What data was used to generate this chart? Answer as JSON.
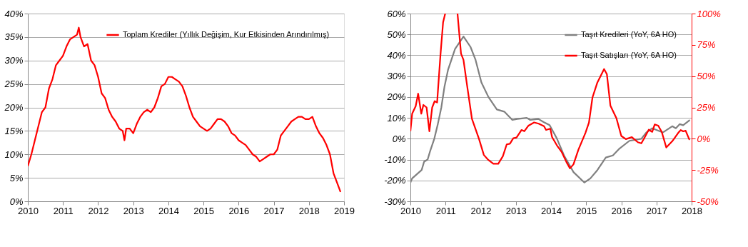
{
  "chart_data": [
    {
      "type": "line",
      "xlim": [
        2010,
        2019
      ],
      "ylim": [
        0,
        40
      ],
      "xticks": [
        2010,
        2011,
        2012,
        2013,
        2014,
        2015,
        2016,
        2017,
        2018,
        2019
      ],
      "yticks": [
        {
          "value": 0,
          "label": "0%"
        },
        {
          "value": 5,
          "label": "5%"
        },
        {
          "value": 10,
          "label": "10%"
        },
        {
          "value": 15,
          "label": "15%"
        },
        {
          "value": 20,
          "label": "20%"
        },
        {
          "value": 25,
          "label": "25%"
        },
        {
          "value": 30,
          "label": "30%"
        },
        {
          "value": 35,
          "label": "35%"
        },
        {
          "value": 40,
          "label": "40%"
        }
      ],
      "grid": "y",
      "legend": "top right",
      "marker": "none",
      "line_style": "solid",
      "series": [
        {
          "name": "Toplam Krediler (Yıllık Değişim, Kur Etkisinden Arındırılmış)",
          "color": "#ff0000",
          "x": [
            2010.0,
            2010.1,
            2010.2,
            2010.3,
            2010.4,
            2010.5,
            2010.6,
            2010.7,
            2010.8,
            2010.9,
            2011.0,
            2011.1,
            2011.2,
            2011.3,
            2011.4,
            2011.45,
            2011.5,
            2011.6,
            2011.7,
            2011.8,
            2011.9,
            2012.0,
            2012.1,
            2012.2,
            2012.3,
            2012.4,
            2012.5,
            2012.6,
            2012.7,
            2012.75,
            2012.8,
            2012.9,
            2013.0,
            2013.1,
            2013.2,
            2013.3,
            2013.4,
            2013.5,
            2013.6,
            2013.7,
            2013.8,
            2013.9,
            2014.0,
            2014.1,
            2014.2,
            2014.3,
            2014.4,
            2014.5,
            2014.6,
            2014.7,
            2014.8,
            2014.9,
            2015.0,
            2015.1,
            2015.2,
            2015.3,
            2015.4,
            2015.5,
            2015.6,
            2015.7,
            2015.8,
            2015.9,
            2016.0,
            2016.1,
            2016.2,
            2016.3,
            2016.4,
            2016.5,
            2016.6,
            2016.7,
            2016.8,
            2016.9,
            2017.0,
            2017.1,
            2017.2,
            2017.3,
            2017.4,
            2017.5,
            2017.6,
            2017.7,
            2017.8,
            2017.9,
            2018.0,
            2018.1,
            2018.2,
            2018.3,
            2018.4,
            2018.5,
            2018.6,
            2018.7,
            2018.8,
            2018.9
          ],
          "values": [
            7.5,
            10,
            13,
            16,
            19,
            20,
            24,
            26,
            29,
            30,
            31,
            33,
            34.5,
            35,
            35.5,
            37,
            35,
            33,
            33.5,
            30,
            29,
            26.5,
            23,
            22,
            19.5,
            18,
            17,
            15.5,
            15,
            13,
            15.5,
            15.5,
            14.5,
            16.5,
            18,
            19,
            19.5,
            19,
            20,
            22,
            24.5,
            25,
            26.5,
            26.5,
            26,
            25.5,
            24.5,
            22.5,
            20,
            18,
            17,
            16,
            15.5,
            15,
            15.5,
            16.5,
            17.5,
            17.5,
            17,
            16,
            14.5,
            14,
            13,
            12.5,
            12,
            11,
            10,
            9.5,
            8.5,
            9,
            9.5,
            10,
            10,
            11,
            14,
            15,
            16,
            17,
            17.5,
            18,
            18,
            17.5,
            17.5,
            18,
            16,
            14.5,
            13.5,
            12,
            10,
            6,
            4,
            2
          ]
        }
      ]
    },
    {
      "type": "line",
      "xlim": [
        2010,
        2018
      ],
      "ylim": [
        -30,
        60
      ],
      "y2lim": [
        -50,
        100
      ],
      "xticks": [
        2010,
        2011,
        2012,
        2013,
        2014,
        2015,
        2016,
        2017,
        2018
      ],
      "yticks": [
        {
          "value": -30,
          "label": "-30%"
        },
        {
          "value": -20,
          "label": "-20%"
        },
        {
          "value": -10,
          "label": "-10%"
        },
        {
          "value": 0,
          "label": "0%"
        },
        {
          "value": 10,
          "label": "10%"
        },
        {
          "value": 20,
          "label": "20%"
        },
        {
          "value": 30,
          "label": "30%"
        },
        {
          "value": 40,
          "label": "40%"
        },
        {
          "value": 50,
          "label": "50%"
        },
        {
          "value": 60,
          "label": "60%"
        }
      ],
      "y2ticks": [
        {
          "value": -50,
          "label": "-50%"
        },
        {
          "value": -25,
          "label": "-25%"
        },
        {
          "value": 0,
          "label": "0%"
        },
        {
          "value": 25,
          "label": "25%"
        },
        {
          "value": 50,
          "label": "50%"
        },
        {
          "value": 75,
          "label": "75%"
        },
        {
          "value": 100,
          "label": "100%"
        }
      ],
      "grid": "y",
      "legend": "top right",
      "marker": "none",
      "line_style": "solid",
      "series": [
        {
          "name": "Taşıt Kredileri (YoY, 6A HO)",
          "color": "#808080",
          "x": [
            2010.0,
            2010.05,
            2010.32,
            2010.39,
            2010.49,
            2010.56,
            2010.68,
            2010.78,
            2010.88,
            2010.97,
            2011.07,
            2011.27,
            2011.51,
            2011.71,
            2011.85,
            2012.02,
            2012.22,
            2012.46,
            2012.67,
            2012.9,
            2013.04,
            2013.31,
            2013.41,
            2013.64,
            2013.79,
            2013.96,
            2014.17,
            2014.37,
            2014.64,
            2014.95,
            2015.12,
            2015.32,
            2015.56,
            2015.76,
            2015.93,
            2016.23,
            2016.57,
            2016.71,
            2016.88,
            2017.18,
            2017.45,
            2017.55,
            2017.66,
            2017.76,
            2017.95
          ],
          "values": [
            -21,
            -19,
            -15,
            -11,
            -10,
            -6,
            0,
            7,
            15,
            25,
            33,
            43,
            49,
            44,
            38,
            27,
            20,
            14,
            13,
            9,
            9.5,
            10,
            9,
            9.5,
            8,
            6.5,
            0,
            -8,
            -16,
            -21,
            -19,
            -15,
            -9,
            -8,
            -5,
            -1,
            0,
            3,
            5,
            3,
            6,
            5,
            7,
            6.5,
            9
          ]
        },
        {
          "name": "Taşıt Satışları (YoY, 6A HO)",
          "color": "#ff0000",
          "axis": "y2",
          "x": [
            2010.0,
            2010.05,
            2010.15,
            2010.22,
            2010.31,
            2010.37,
            2010.46,
            2010.54,
            2010.62,
            2010.69,
            2010.76,
            2010.85,
            2010.93,
            2010.99,
            2011.17,
            2011.34,
            2011.44,
            2011.51,
            2011.61,
            2011.75,
            2011.95,
            2012.09,
            2012.22,
            2012.36,
            2012.5,
            2012.63,
            2012.74,
            2012.83,
            2012.93,
            2013.02,
            2013.16,
            2013.24,
            2013.36,
            2013.52,
            2013.65,
            2013.8,
            2013.86,
            2013.98,
            2014.03,
            2014.17,
            2014.3,
            2014.44,
            2014.54,
            2014.64,
            2014.78,
            2014.98,
            2015.08,
            2015.18,
            2015.32,
            2015.51,
            2015.59,
            2015.69,
            2015.86,
            2016.0,
            2016.13,
            2016.3,
            2016.47,
            2016.57,
            2016.67,
            2016.78,
            2016.88,
            2016.95,
            2017.05,
            2017.15,
            2017.28,
            2017.45,
            2017.62,
            2017.69,
            2017.76,
            2017.83,
            2017.93,
            2017.95
          ],
          "values": [
            6,
            20,
            26,
            36,
            20,
            27,
            25,
            6,
            25,
            30,
            29,
            65,
            93,
            100,
            null,
            100,
            68,
            63,
            43,
            16,
            0,
            -13,
            -17,
            -20,
            -20,
            -14,
            -4.5,
            -4,
            0.5,
            1,
            7,
            6,
            10.5,
            13,
            12,
            10,
            7,
            8,
            1.3,
            -5.4,
            -10.4,
            -18.7,
            -23.7,
            -20.4,
            -8.7,
            4.7,
            13,
            33,
            45,
            55.7,
            51.5,
            26.4,
            16.4,
            2.2,
            -0.3,
            1.3,
            -2.8,
            -3.7,
            1.3,
            7.2,
            5.5,
            11.4,
            10.5,
            5.5,
            -7,
            -2,
            4.7,
            6.9,
            5.9,
            6.4,
            -0.3,
            -0.7
          ]
        }
      ]
    }
  ]
}
